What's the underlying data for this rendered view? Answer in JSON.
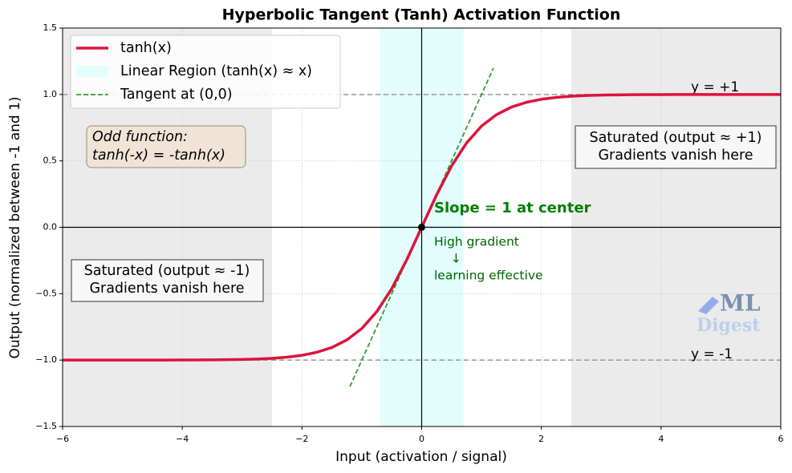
{
  "chart_data": {
    "type": "line",
    "title": "Hyperbolic Tangent (Tanh) Activation Function",
    "xlabel": "Input (activation / signal)",
    "ylabel": "Output (normalized between -1 and 1)",
    "xlim": [
      -6,
      6
    ],
    "ylim": [
      -1.5,
      1.5
    ],
    "xticks": [
      {
        "value": -6,
        "label": "−6"
      },
      {
        "value": -4,
        "label": "−4"
      },
      {
        "value": -2,
        "label": "−2"
      },
      0,
      2,
      4,
      6
    ],
    "yticks": [
      {
        "value": -1.5,
        "label": "−1.5"
      },
      {
        "value": -1,
        "label": "−1.0"
      },
      {
        "value": -0.5,
        "label": "−0.5"
      },
      {
        "value": 0,
        "label": "0.0"
      },
      0.5,
      {
        "value": 1,
        "label": "1.0"
      },
      1.5
    ],
    "grid": true,
    "legend": "upper left",
    "x": [
      -6,
      -5.75,
      -5.5,
      -5.25,
      -5,
      -4.75,
      -4.5,
      -4.25,
      -4,
      -3.75,
      -3.5,
      -3.25,
      -3,
      -2.75,
      -2.5,
      -2.25,
      -2,
      -1.75,
      -1.5,
      -1.25,
      -1,
      -0.75,
      -0.5,
      -0.25,
      0,
      0.25,
      0.5,
      0.75,
      1,
      1.25,
      1.5,
      1.75,
      2,
      2.25,
      2.5,
      2.75,
      3,
      3.25,
      3.5,
      3.75,
      4,
      4.25,
      4.5,
      4.75,
      5,
      5.25,
      5.5,
      5.75,
      6
    ],
    "series": [
      {
        "name": "tanh(x)",
        "color": "#dc143c",
        "values": [
          -1,
          -1,
          -1,
          -1,
          -1,
          -1,
          -1,
          -1,
          -0.999,
          -0.999,
          -0.998,
          -0.997,
          -0.995,
          -0.992,
          -0.987,
          -0.978,
          -0.964,
          -0.941,
          -0.905,
          -0.848,
          -0.762,
          -0.635,
          -0.462,
          -0.245,
          0,
          0.245,
          0.462,
          0.635,
          0.762,
          0.848,
          0.905,
          0.941,
          0.964,
          0.978,
          0.987,
          0.992,
          0.995,
          0.997,
          0.998,
          0.999,
          0.999,
          1,
          1,
          1,
          1,
          1,
          1,
          1,
          1
        ]
      },
      {
        "name": "Tangent at (0,0)",
        "color": "#2ca02c",
        "dashed": true,
        "x": [
          -1.2,
          1.2
        ],
        "values": [
          -1.2,
          1.2
        ]
      }
    ],
    "regions": [
      {
        "x": [
          -6,
          -2.5
        ],
        "color": "#ebebeb"
      },
      {
        "x": [
          2.5,
          6
        ],
        "color": "#ebebeb"
      },
      {
        "name": "Linear Region (tanh(x) ≈ x)",
        "x": [
          -0.7,
          0.7
        ],
        "color": "#e3fdfd"
      }
    ],
    "hlines": [
      {
        "y": 1,
        "label": "y = +1"
      },
      {
        "y": -1,
        "label": "y = -1"
      }
    ],
    "point": {
      "x": 0,
      "y": 0
    },
    "annotations": {
      "slope": "Slope = 1 at center",
      "gradient": [
        "High gradient",
        "↓",
        "learning effective"
      ],
      "sat_pos": [
        "Saturated (output ≈ +1)",
        "Gradients vanish here"
      ],
      "sat_neg": [
        "Saturated (output ≈ -1)",
        "Gradients vanish here"
      ],
      "odd": [
        "Odd function:",
        "tanh(-x) = -tanh(x)"
      ]
    },
    "watermark": [
      "ML",
      "Digest"
    ]
  }
}
